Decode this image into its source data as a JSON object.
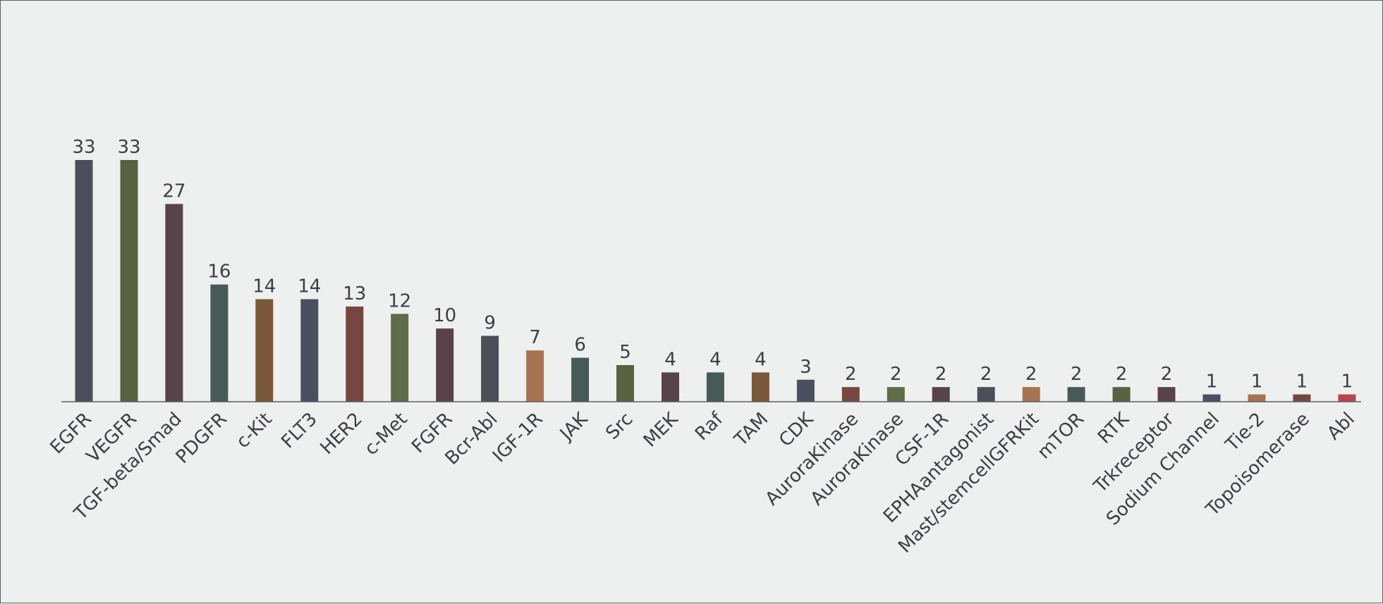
{
  "chart_data": {
    "type": "bar",
    "title": "",
    "xlabel": "",
    "ylabel": "",
    "ylim": [
      0,
      33
    ],
    "grid": false,
    "legend": "none",
    "categories": [
      "EGFR",
      "VEGFR",
      "TGF-beta/Smad",
      "PDGFR",
      "c-Kit",
      "FLT3",
      "HER2",
      "c-Met",
      "FGFR",
      "Bcr-Abl",
      "IGF-1R",
      "JAK",
      "Src",
      "MEK",
      "Raf",
      "TAM",
      "CDK",
      "AuroraKinase",
      "AuroraKinase",
      "CSF-1R",
      "EPHAantagonist",
      "Mast/stemcellGFRKit",
      "mTOR",
      "RTK",
      "Trkreceptor",
      "Sodium Channel",
      "Tie-2",
      "Topoisomerase",
      "Abl"
    ],
    "values": [
      33,
      33,
      27,
      16,
      14,
      14,
      13,
      12,
      10,
      9,
      7,
      6,
      5,
      4,
      4,
      4,
      3,
      2,
      2,
      2,
      2,
      2,
      2,
      2,
      2,
      1,
      1,
      1,
      1
    ],
    "value_labels": [
      "33",
      "33",
      "27",
      "16",
      "14",
      "14",
      "13",
      "12",
      "10",
      "9",
      "7",
      "6",
      "5",
      "4",
      "4",
      "4",
      "3",
      "2",
      "2",
      "2",
      "2",
      "2",
      "2",
      "2",
      "2",
      "1",
      "1",
      "1",
      "1"
    ],
    "colors": [
      "#4a4f59",
      "#5a6142",
      "#574349",
      "#485a57",
      "#7b583b",
      "#4a4f61",
      "#764741",
      "#5f6c48",
      "#574349",
      "#4a4f59",
      "#a67452",
      "#485a57",
      "#5a6142",
      "#574349",
      "#485a57",
      "#7b583b",
      "#4a4f61",
      "#764741",
      "#5f6c48",
      "#574349",
      "#4a4f59",
      "#a67452",
      "#485a57",
      "#5a6142",
      "#574349",
      "#4a4f61",
      "#a67452",
      "#764741",
      "#b84550"
    ]
  }
}
